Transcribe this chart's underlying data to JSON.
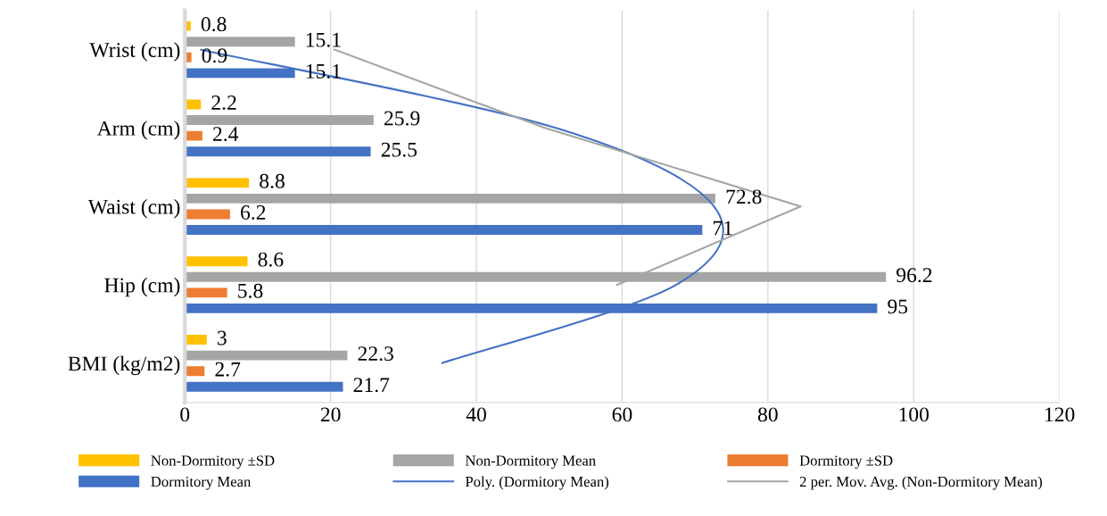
{
  "chart_data": {
    "type": "bar",
    "orientation": "horizontal",
    "categories": [
      "Wrist (cm)",
      "Arm (cm)",
      "Waist (cm)",
      "Hip (cm)",
      "BMI (kg/m2)"
    ],
    "series": [
      {
        "name": "Non-Dormitory ±SD",
        "color": "#ffc000",
        "values": [
          0.8,
          2.2,
          8.8,
          8.6,
          3
        ],
        "value_labels": [
          "0.8",
          "2.2",
          "8.8",
          "8.6",
          "3"
        ]
      },
      {
        "name": "Non-Dormitory Mean",
        "color": "#a5a5a5",
        "values": [
          15.1,
          25.9,
          72.8,
          96.2,
          22.3
        ],
        "value_labels": [
          "15.1",
          "25.9",
          "72.8",
          "96.2",
          "22.3"
        ]
      },
      {
        "name": "Dormitory ±SD",
        "color": "#ed7d31",
        "values": [
          0.9,
          2.4,
          6.2,
          5.8,
          2.7
        ],
        "value_labels": [
          "0.9",
          "2.4",
          "6.2",
          "5.8",
          "2.7"
        ]
      },
      {
        "name": "Dormitory Mean",
        "color": "#4472c4",
        "values": [
          15.1,
          25.5,
          71,
          95,
          21.7
        ],
        "value_labels": [
          "15.1",
          "25.5",
          "71",
          "95",
          "21.7"
        ]
      },
      {
        "name": "Poly. (Dormitory Mean)",
        "type": "line",
        "color": "#4472c4",
        "values": [
          2.1,
          50.9,
          72.6,
          67.4,
          35.2
        ]
      },
      {
        "name": "2 per. Mov. Avg. (Non-Dormitory Mean)",
        "type": "line",
        "color": "#a5a5a5",
        "values": [
          20.5,
          49.4,
          84.5,
          59.3,
          null
        ]
      }
    ],
    "xlim": [
      0,
      120
    ],
    "xticks": [
      0,
      20,
      40,
      60,
      80,
      100,
      120
    ],
    "grid": "x",
    "legend": "bottom"
  }
}
